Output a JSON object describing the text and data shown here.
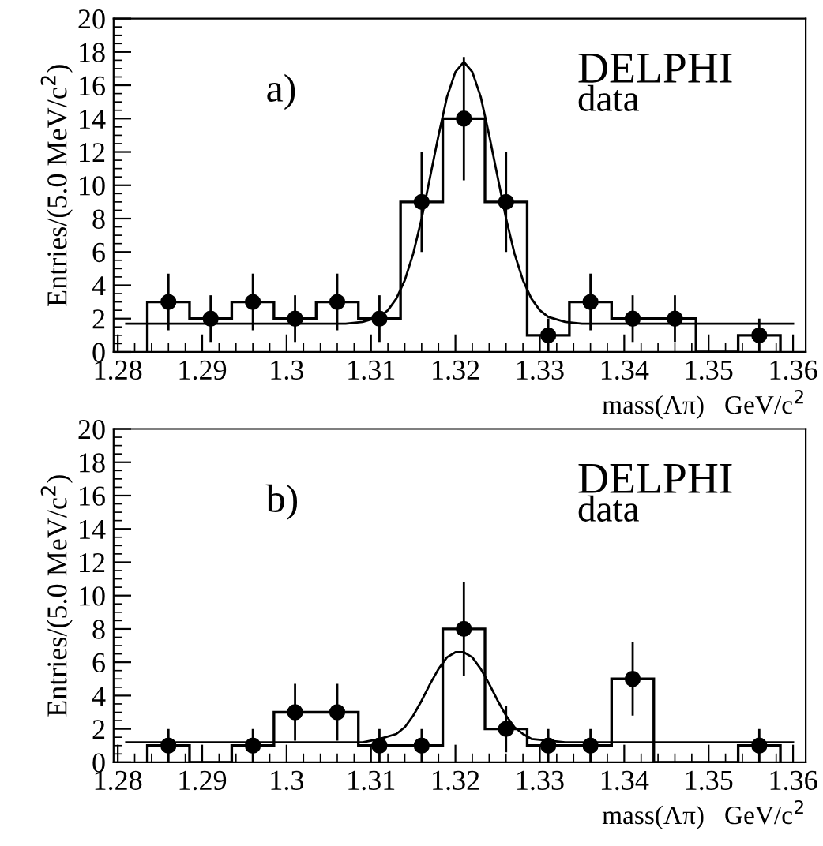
{
  "chart_data": [
    {
      "type": "histogram",
      "bins": [
        1.2835,
        1.2885,
        1.2935,
        1.2985,
        1.3035,
        1.3085,
        1.3135,
        1.3185,
        1.3235,
        1.3285,
        1.3335,
        1.3385,
        1.3435,
        1.3485,
        1.3535,
        1.3585
      ],
      "values": [
        3,
        2,
        3,
        2,
        3,
        2,
        9,
        14,
        9,
        1,
        3,
        2,
        2,
        0,
        1
      ],
      "color": "#000000",
      "series": [
        {
          "type": "scatter",
          "marker": "circle",
          "color": "#000000",
          "x": [
            1.286,
            1.291,
            1.296,
            1.301,
            1.306,
            1.311,
            1.316,
            1.321,
            1.326,
            1.331,
            1.336,
            1.341,
            1.346,
            1.356
          ],
          "values": [
            3,
            2,
            3,
            2,
            3,
            2,
            9,
            14,
            9,
            1,
            3,
            2,
            2,
            1
          ],
          "errors": [
            1.7,
            1.4,
            1.7,
            1.4,
            1.7,
            1.4,
            3.0,
            3.7,
            3.0,
            1.0,
            1.7,
            1.4,
            1.4,
            1.0
          ]
        },
        {
          "type": "line",
          "color": "#000000",
          "x": [
            1.281,
            1.3,
            1.307,
            1.309,
            1.311,
            1.312,
            1.313,
            1.314,
            1.315,
            1.316,
            1.317,
            1.318,
            1.319,
            1.32,
            1.321,
            1.322,
            1.323,
            1.324,
            1.325,
            1.326,
            1.327,
            1.328,
            1.329,
            1.33,
            1.331,
            1.333,
            1.335,
            1.36
          ],
          "values": [
            1.7,
            1.7,
            1.7,
            1.8,
            2.1,
            2.5,
            3.2,
            4.3,
            5.9,
            8.0,
            10.5,
            13.0,
            15.3,
            16.8,
            17.4,
            16.8,
            15.3,
            13.0,
            10.5,
            8.0,
            5.9,
            4.3,
            3.2,
            2.5,
            2.1,
            1.8,
            1.7,
            1.7
          ]
        }
      ],
      "xlabel": "mass(Λπ)   GeV/c$^{2}$",
      "ylabel": "Entries/(5.0 MeV/c$^{2}$)",
      "annotations": [
        "a)",
        "DELPHI",
        "data"
      ],
      "xlim": [
        1.2795,
        1.3615
      ],
      "xticks": [
        1.28,
        1.29,
        1.3,
        1.31,
        1.32,
        1.33,
        1.34,
        1.35,
        1.36
      ],
      "ylim": [
        0,
        20
      ],
      "yticks": [
        0,
        2,
        4,
        6,
        8,
        10,
        12,
        14,
        16,
        18,
        20
      ],
      "grid": false,
      "legend": false
    },
    {
      "type": "histogram",
      "bins": [
        1.2835,
        1.2885,
        1.2935,
        1.2985,
        1.3035,
        1.3085,
        1.3135,
        1.3185,
        1.3235,
        1.3285,
        1.3335,
        1.3385,
        1.3435,
        1.3485,
        1.3535,
        1.3585
      ],
      "values": [
        1,
        0,
        1,
        3,
        3,
        1,
        1,
        8,
        2,
        1,
        1,
        5,
        0,
        0,
        1
      ],
      "color": "#000000",
      "series": [
        {
          "type": "scatter",
          "marker": "circle",
          "color": "#000000",
          "x": [
            1.286,
            1.296,
            1.301,
            1.306,
            1.311,
            1.316,
            1.321,
            1.326,
            1.331,
            1.336,
            1.341,
            1.356
          ],
          "values": [
            1,
            1,
            3,
            3,
            1,
            1,
            8,
            2,
            1,
            1,
            5,
            1
          ],
          "errors": [
            1.0,
            1.0,
            1.7,
            1.7,
            1.0,
            1.0,
            2.8,
            1.4,
            1.0,
            1.0,
            2.2,
            1.0
          ]
        },
        {
          "type": "line",
          "color": "#000000",
          "x": [
            1.281,
            1.305,
            1.309,
            1.311,
            1.313,
            1.314,
            1.315,
            1.316,
            1.317,
            1.318,
            1.319,
            1.32,
            1.321,
            1.322,
            1.323,
            1.324,
            1.325,
            1.326,
            1.327,
            1.328,
            1.329,
            1.331,
            1.333,
            1.36
          ],
          "values": [
            1.2,
            1.2,
            1.2,
            1.4,
            1.7,
            2.1,
            2.8,
            3.7,
            4.7,
            5.6,
            6.3,
            6.6,
            6.6,
            6.3,
            5.6,
            4.7,
            3.7,
            2.8,
            2.1,
            1.7,
            1.4,
            1.3,
            1.2,
            1.2
          ]
        }
      ],
      "xlabel": "mass(Λπ)   GeV/c$^{2}$",
      "ylabel": "Entries/(5.0 MeV/c$^{2}$)",
      "annotations": [
        "b)",
        "DELPHI",
        "data"
      ],
      "xlim": [
        1.2795,
        1.3615
      ],
      "xticks": [
        1.28,
        1.29,
        1.3,
        1.31,
        1.32,
        1.33,
        1.34,
        1.35,
        1.36
      ],
      "ylim": [
        0,
        20
      ],
      "yticks": [
        0,
        2,
        4,
        6,
        8,
        10,
        12,
        14,
        16,
        18,
        20
      ],
      "grid": false,
      "legend": false
    }
  ]
}
